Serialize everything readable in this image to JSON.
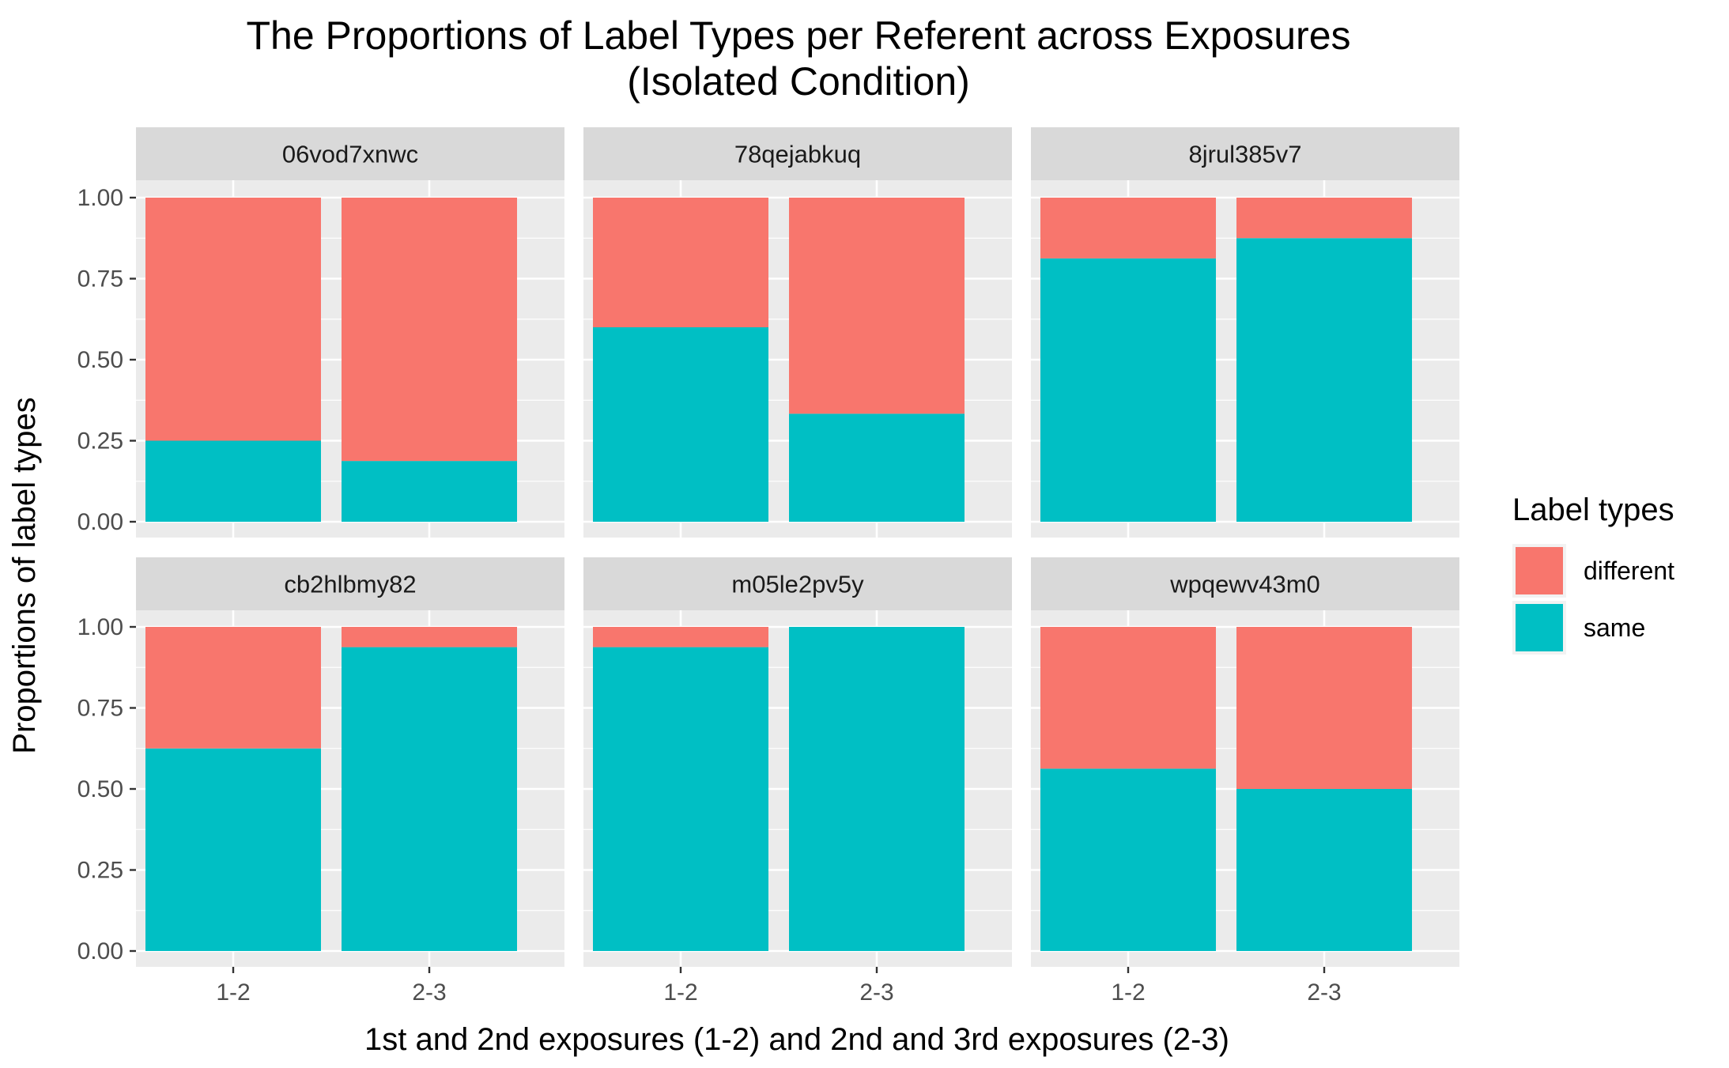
{
  "chart_data": {
    "type": "bar",
    "stacked": true,
    "title_lines": [
      "The Proportions of Label Types per Referent across Exposures",
      "(Isolated Condition)"
    ],
    "xlabel": "1st and 2nd exposures (1-2) and 2nd and 3rd exposures (2-3)",
    "ylabel": "Proportions of label types",
    "ylim": [
      0,
      1
    ],
    "y_ticks": [
      "0.00",
      "0.25",
      "0.50",
      "0.75",
      "1.00"
    ],
    "categories": [
      "1-2",
      "2-3"
    ],
    "legend": {
      "title": "Label types",
      "position": "right",
      "entries": [
        {
          "name": "different",
          "color": "#F8766D"
        },
        {
          "name": "same",
          "color": "#00BFC4"
        }
      ]
    },
    "facets": [
      {
        "name": "06vod7xnwc",
        "series": [
          {
            "name": "different",
            "values": [
              0.75,
              0.8125
            ]
          },
          {
            "name": "same",
            "values": [
              0.25,
              0.1875
            ]
          }
        ]
      },
      {
        "name": "78qejabkuq",
        "series": [
          {
            "name": "different",
            "values": [
              0.4,
              0.6667
            ]
          },
          {
            "name": "same",
            "values": [
              0.6,
              0.3333
            ]
          }
        ]
      },
      {
        "name": "8jrul385v7",
        "series": [
          {
            "name": "different",
            "values": [
              0.1875,
              0.125
            ]
          },
          {
            "name": "same",
            "values": [
              0.8125,
              0.875
            ]
          }
        ]
      },
      {
        "name": "cb2hlbmy82",
        "series": [
          {
            "name": "different",
            "values": [
              0.375,
              0.0625
            ]
          },
          {
            "name": "same",
            "values": [
              0.625,
              0.9375
            ]
          }
        ]
      },
      {
        "name": "m05le2pv5y",
        "series": [
          {
            "name": "different",
            "values": [
              0.0625,
              0.0
            ]
          },
          {
            "name": "same",
            "values": [
              0.9375,
              1.0
            ]
          }
        ]
      },
      {
        "name": "wpqewv43m0",
        "series": [
          {
            "name": "different",
            "values": [
              0.4375,
              0.5
            ]
          },
          {
            "name": "same",
            "values": [
              0.5625,
              0.5
            ]
          }
        ]
      }
    ],
    "grid": true,
    "panel_background": "#EBEBEB",
    "strip_background": "#D9D9D9"
  }
}
